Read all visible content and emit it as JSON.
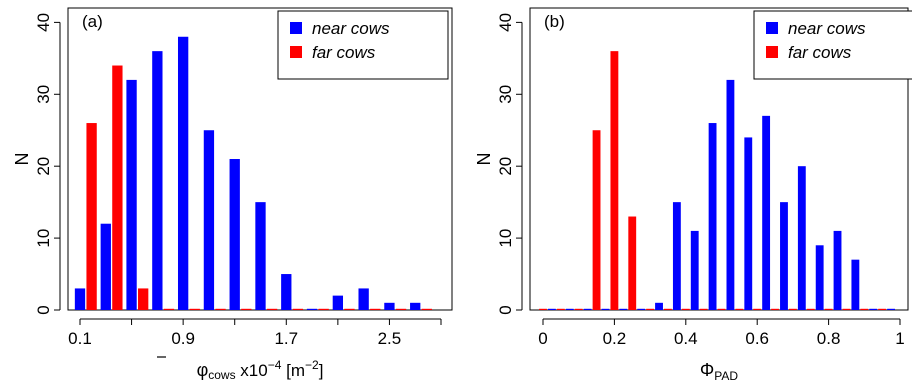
{
  "chart_data": [
    {
      "type": "bar",
      "panel_label": "(a)",
      "ylabel": "N",
      "xlabel_main": "φ",
      "xlabel_sub": "cows",
      "xlabel_mid": " x10",
      "xlabel_sup": "−4",
      "xlabel_unit_open": " [m",
      "xlabel_unit_sup": "−2",
      "xlabel_unit_close": "]",
      "xlim": [
        0.0,
        2.95
      ],
      "ylim": [
        0,
        42
      ],
      "xticks": [
        0.1,
        0.5,
        0.9,
        1.3,
        1.7,
        2.1,
        2.5,
        2.9
      ],
      "xtick_labels": [
        "0.1",
        "",
        "0.9",
        "",
        "1.7",
        "",
        "2.5",
        ""
      ],
      "yticks": [
        0,
        10,
        20,
        30,
        40
      ],
      "ytick_labels": [
        "0",
        "10",
        "20",
        "30",
        "40"
      ],
      "bar_width": 0.08,
      "legend_position": "top-right",
      "series": [
        {
          "name": "near cows",
          "color": "#0000ff",
          "x": [
            0.1,
            0.3,
            0.5,
            0.7,
            0.9,
            1.1,
            1.3,
            1.5,
            1.7,
            1.9,
            2.1,
            2.3,
            2.5,
            2.7
          ],
          "values": [
            3,
            12,
            32,
            36,
            38,
            25,
            21,
            15,
            5,
            0,
            2,
            3,
            1,
            1
          ]
        },
        {
          "name": "far cows",
          "color": "#ff0000",
          "x": [
            0.19,
            0.39,
            0.59,
            0.79,
            0.99,
            1.19,
            1.39,
            1.59,
            1.79,
            1.99,
            2.19,
            2.39,
            2.59,
            2.79
          ],
          "values": [
            26,
            34,
            3,
            0,
            0,
            0,
            0,
            0,
            0,
            0,
            0,
            0,
            0,
            0
          ]
        }
      ]
    },
    {
      "type": "bar",
      "panel_label": "(b)",
      "ylabel": "N",
      "xlabel_main": "Φ",
      "xlabel_sub": "PAD",
      "xlim": [
        0,
        1
      ],
      "ylim": [
        0,
        42
      ],
      "xticks": [
        0,
        0.2,
        0.4,
        0.6,
        0.8,
        1.0
      ],
      "xtick_labels": [
        "0",
        "0.2",
        "0.4",
        "0.6",
        "0.8",
        "1"
      ],
      "yticks": [
        0,
        10,
        20,
        30,
        40
      ],
      "ytick_labels": [
        "0",
        "10",
        "20",
        "30",
        "40"
      ],
      "bar_width": 0.022,
      "legend_position": "top-right",
      "series": [
        {
          "name": "near cows",
          "color": "#0000ff",
          "x": [
            0.025,
            0.075,
            0.125,
            0.175,
            0.225,
            0.275,
            0.325,
            0.375,
            0.425,
            0.475,
            0.525,
            0.575,
            0.625,
            0.675,
            0.725,
            0.775,
            0.825,
            0.875,
            0.925,
            0.975
          ],
          "values": [
            0,
            0,
            0,
            0,
            0,
            0,
            1,
            15,
            11,
            26,
            32,
            24,
            27,
            15,
            20,
            9,
            11,
            7,
            0,
            0
          ]
        },
        {
          "name": "far cows",
          "color": "#ff0000",
          "x": [
            0.0,
            0.05,
            0.1,
            0.15,
            0.2,
            0.25,
            0.3,
            0.35,
            0.4,
            0.45,
            0.5,
            0.55,
            0.6,
            0.65,
            0.7,
            0.75,
            0.8,
            0.85,
            0.9,
            0.95
          ],
          "values": [
            0,
            0,
            0,
            25,
            36,
            13,
            0,
            0,
            0,
            0,
            0,
            0,
            0,
            0,
            0,
            0,
            0,
            0,
            0,
            0
          ]
        }
      ]
    }
  ]
}
